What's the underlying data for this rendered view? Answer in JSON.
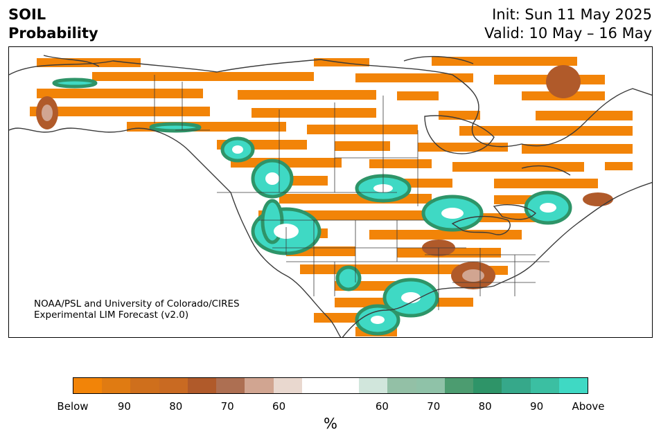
{
  "title": {
    "left_line1": "SOIL",
    "left_line2": "Probability",
    "right_line1": "Init: Sun 11 May 2025",
    "right_line2": "Valid: 10 May – 16 May"
  },
  "credit": {
    "line1": "NOAA/PSL and University of Colorado/CIRES",
    "line2": "Experimental LIM Forecast (v2.0)"
  },
  "colorbar": {
    "colors": [
      "#f28408",
      "#e07b12",
      "#cf6f1c",
      "#c96a22",
      "#b05a2a",
      "#ad6f52",
      "#d1a591",
      "#e9d8cf",
      "#ffffff",
      "#ffffff",
      "#d1e6dc",
      "#93c0a6",
      "#8fc2a8",
      "#4c9c70",
      "#2e9468",
      "#36a88a",
      "#3bbfa2",
      "#3fd9c4"
    ],
    "ticks": [
      "Below",
      "90",
      "80",
      "70",
      "60",
      "60",
      "70",
      "80",
      "90",
      "Above"
    ],
    "label": "%"
  },
  "map": {
    "below_color": "#f28408",
    "brown_color": "#b05a2a",
    "above_color": "#3fd9c4",
    "green_color": "#2e9468"
  }
}
